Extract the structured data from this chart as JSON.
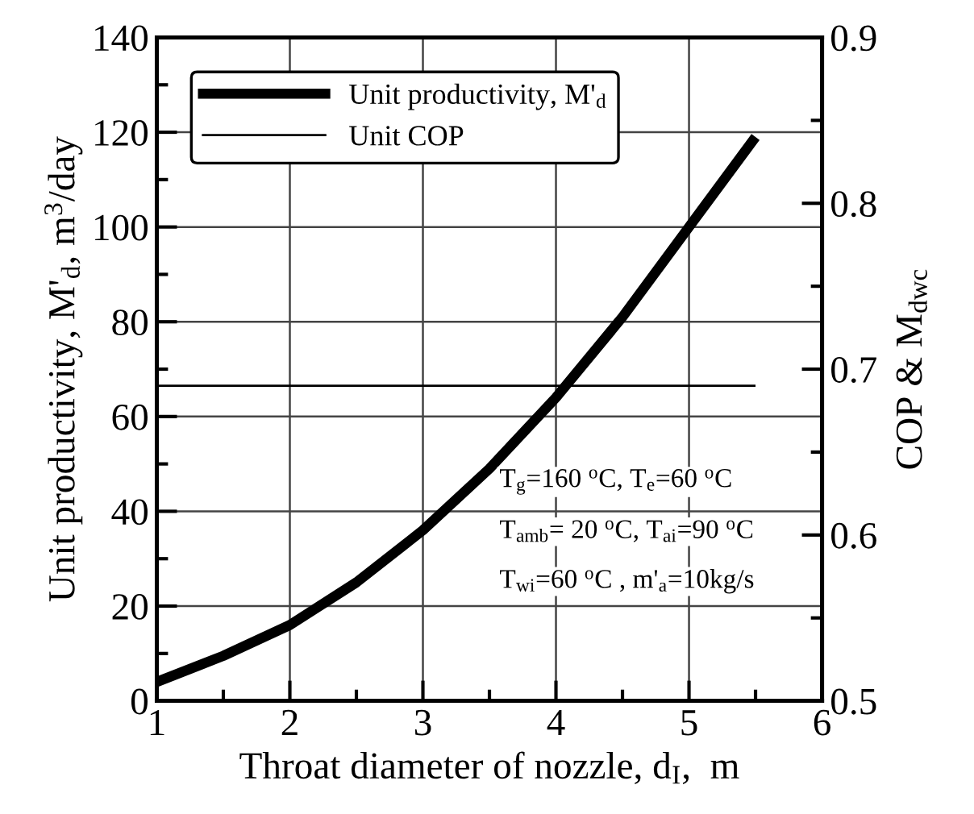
{
  "chart_data": {
    "type": "line",
    "xlabel": "Throat diameter of nozzle, d$_{I}$,  m",
    "ylabel": "Unit productivity, M'$_{d}$, m$^{3}$/day",
    "y2label": "COP & M$_{dwc}$",
    "series": [
      {
        "name": "Unit productivity, M'$_{d}$",
        "color": "#000000",
        "x": [
          1,
          1.5,
          2,
          2.5,
          3,
          3.5,
          4,
          4.5,
          5,
          5.5
        ],
        "values": [
          4,
          9.5,
          16,
          25,
          36,
          49,
          64,
          81,
          100,
          119
        ]
      },
      {
        "name": "Unit COP",
        "color": "#000000",
        "axis": "y2",
        "x": [
          1,
          5.5
        ],
        "values": [
          0.69,
          0.69
        ]
      }
    ],
    "xlim": [
      1,
      6
    ],
    "xticks": [
      1,
      2,
      3,
      4,
      5,
      6
    ],
    "ylim": [
      0,
      140
    ],
    "yticks": [
      0,
      20,
      40,
      60,
      80,
      100,
      120,
      140
    ],
    "y2lim": [
      0.5,
      0.9
    ],
    "y2ticks": [
      0.5,
      0.6,
      0.7,
      0.8,
      0.9
    ],
    "grid": true,
    "legend": "top left",
    "line_style": "solid",
    "annotations": [
      "T$_{g}$=160 $^{o}$C, T$_{e}$=60 $^{o}$C",
      "T$_{amb}$= 20 $^{o}$C, T$_{ai}$=90 $^{o}$C",
      "T$_{wi}$=60 $^{o}$C , m'$_{a}$=10kg/s"
    ]
  }
}
